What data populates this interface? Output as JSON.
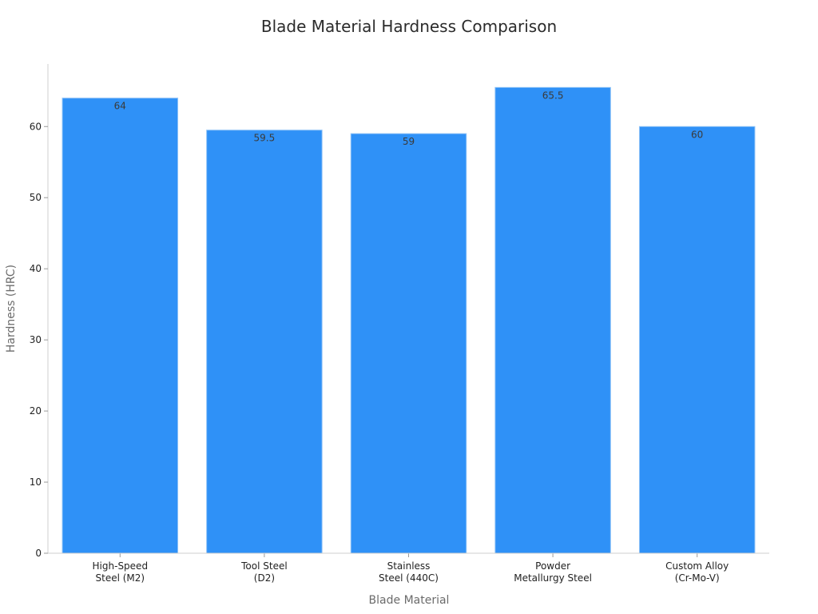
{
  "chart_data": {
    "type": "bar",
    "title": "Blade Material Hardness Comparison",
    "xlabel": "Blade Material",
    "ylabel": "Hardness (HRC)",
    "categories": [
      [
        "High-Speed",
        "Steel (M2)"
      ],
      [
        "Tool Steel",
        "(D2)"
      ],
      [
        "Stainless",
        "Steel (440C)"
      ],
      [
        "Powder",
        "Metallurgy Steel"
      ],
      [
        "Custom Alloy",
        "(Cr-Mo-V)"
      ]
    ],
    "values": [
      64,
      59.5,
      59,
      65.5,
      60
    ],
    "value_labels": [
      "64",
      "59.5",
      "59",
      "65.5",
      "60"
    ],
    "ylim": [
      0,
      68.8
    ],
    "yticks": [
      0,
      10,
      20,
      30,
      40,
      50,
      60
    ],
    "grid": false,
    "bar_color": "#2f91f7",
    "bar_edge_color": "#8fc3f7"
  }
}
